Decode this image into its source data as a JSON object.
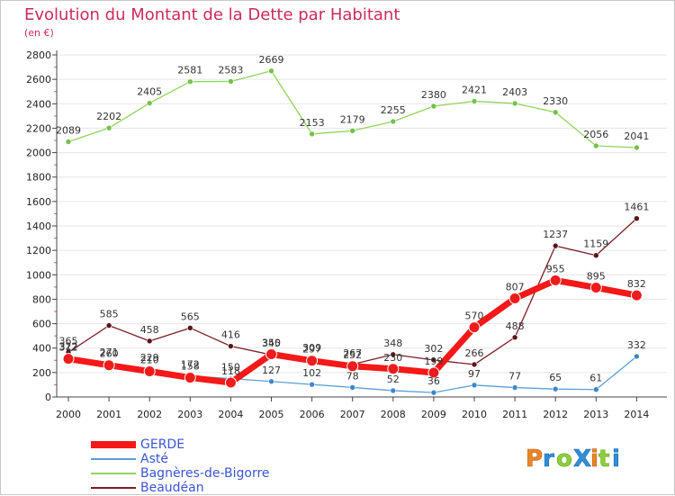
{
  "header": {
    "title": "Evolution du Montant de la Dette par Habitant",
    "subtitle": "(en €)"
  },
  "logo": {
    "text": "ProXiti",
    "icon": "proxiti-logo"
  },
  "colors": {
    "title": "#cc2a5a",
    "legend_text": "#3a55d6",
    "axis": "#444444",
    "grid": "#e6e6e6"
  },
  "chart_data": {
    "type": "line",
    "title": "Evolution du Montant de la Dette par Habitant",
    "subtitle": "(en €)",
    "xlabel": "",
    "ylabel": "",
    "x": [
      "2000",
      "2001",
      "2002",
      "2003",
      "2004",
      "2005",
      "2006",
      "2007",
      "2008",
      "2009",
      "2010",
      "2011",
      "2012",
      "2013",
      "2014"
    ],
    "ylim": [
      0,
      2800
    ],
    "yticks": [
      0,
      200,
      400,
      600,
      800,
      1000,
      1200,
      1400,
      1600,
      1800,
      2000,
      2200,
      2400,
      2600,
      2800
    ],
    "grid": false,
    "legend_position": "bottom-left",
    "series": [
      {
        "name": "Beaudéan",
        "color": "#7a1e25",
        "marker": "#5c1418",
        "width": 1.3,
        "radius": 3,
        "values": [
          365,
          585,
          458,
          565,
          416,
          345,
          309,
          267,
          348,
          302,
          266,
          488,
          1237,
          1159,
          1461
        ]
      },
      {
        "name": "Bagnères-de-Bigorre",
        "color": "#8fd45c",
        "marker": "#72c24a",
        "width": 1.3,
        "radius": 3,
        "values": [
          2089,
          2202,
          2405,
          2581,
          2583,
          2669,
          2153,
          2179,
          2255,
          2380,
          2421,
          2403,
          2330,
          2056,
          2041
        ]
      },
      {
        "name": "Asté",
        "color": "#5b9fd8",
        "marker": "#3e86c8",
        "width": 1.3,
        "radius": 3,
        "values": [
          322,
          271,
          229,
          172,
          150,
          127,
          102,
          78,
          52,
          36,
          97,
          77,
          65,
          61,
          332
        ]
      },
      {
        "name": "GERDE",
        "color": "#f51818",
        "marker": "#ee1c1c",
        "width": 7,
        "radius": 6,
        "values": [
          312,
          260,
          210,
          158,
          118,
          350,
          297,
          252,
          230,
          199,
          570,
          807,
          955,
          895,
          832
        ]
      }
    ]
  },
  "legend": [
    {
      "name": "GERDE",
      "color": "#f51818",
      "thickness": 8
    },
    {
      "name": "Asté",
      "color": "#5b9fd8",
      "thickness": 2
    },
    {
      "name": "Bagnères-de-Bigorre",
      "color": "#8fd45c",
      "thickness": 2
    },
    {
      "name": "Beaudéan",
      "color": "#7a1e25",
      "thickness": 2
    }
  ]
}
